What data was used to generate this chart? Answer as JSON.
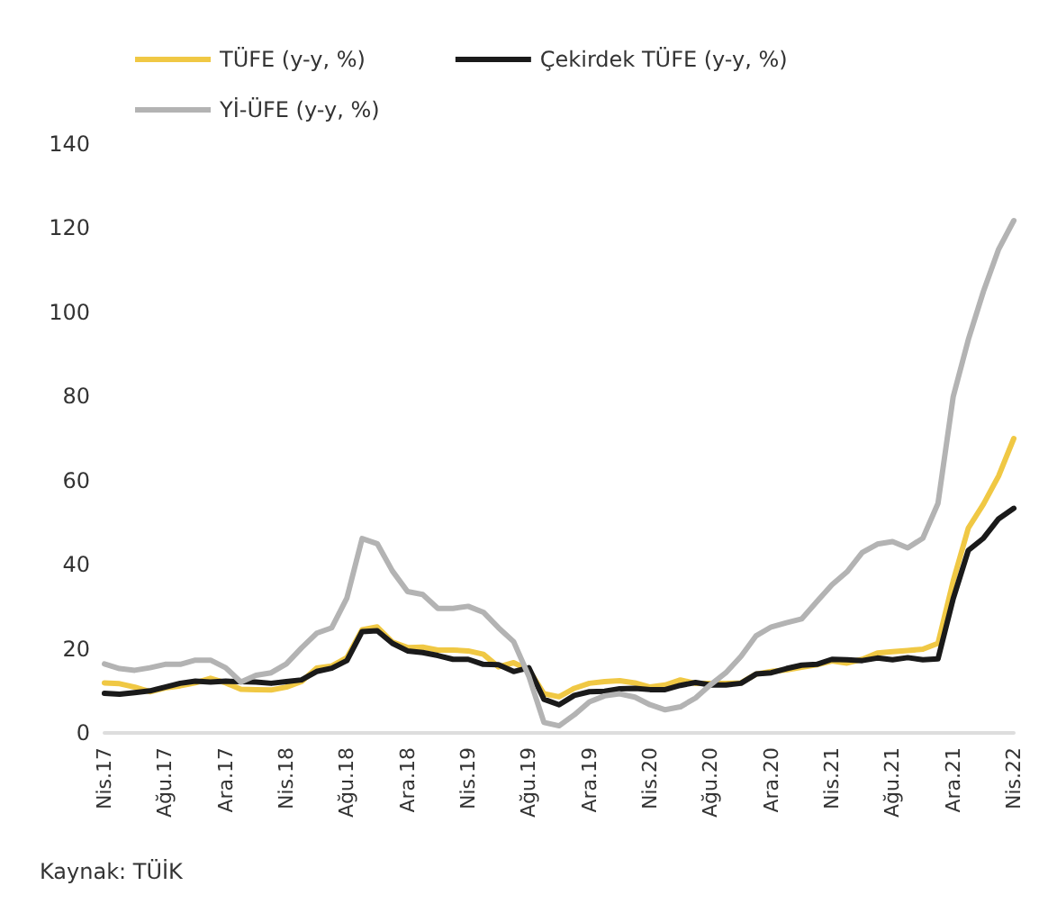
{
  "chart_data": {
    "type": "line",
    "categories": [
      "Nis.17",
      null,
      null,
      null,
      "Ağu.17",
      null,
      null,
      null,
      "Ara.17",
      null,
      null,
      null,
      "Nis.18",
      null,
      null,
      null,
      "Ağu.18",
      null,
      null,
      null,
      "Ara.18",
      null,
      null,
      null,
      "Nis.19",
      null,
      null,
      null,
      "Ağu.19",
      null,
      null,
      null,
      "Ara.19",
      null,
      null,
      null,
      "Nis.20",
      null,
      null,
      null,
      "Ağu.20",
      null,
      null,
      null,
      "Ara.20",
      null,
      null,
      null,
      "Nis.21",
      null,
      null,
      null,
      "Ağu.21",
      null,
      null,
      null,
      "Ara.21",
      null,
      null,
      null,
      "Nis.22"
    ],
    "series": [
      {
        "name": "TÜFE (y-y, %)",
        "color": "#f0c844",
        "values": [
          11.9,
          11.7,
          10.9,
          9.8,
          10.7,
          11.2,
          11.9,
          13.0,
          11.9,
          10.4,
          10.3,
          10.2,
          10.9,
          12.2,
          15.4,
          15.9,
          17.9,
          24.5,
          25.2,
          21.6,
          20.3,
          20.4,
          19.7,
          19.7,
          19.5,
          18.7,
          15.7,
          16.7,
          15.0,
          9.3,
          8.6,
          10.6,
          11.8,
          12.2,
          12.4,
          11.9,
          10.9,
          11.4,
          12.6,
          11.8,
          11.8,
          11.8,
          11.9,
          14.0,
          14.6,
          15.0,
          15.6,
          16.2,
          17.1,
          16.6,
          17.5,
          19.0,
          19.3,
          19.6,
          19.9,
          21.3,
          36.1,
          48.7,
          54.4,
          61.1,
          70.0
        ]
      },
      {
        "name": "Çekirdek TÜFE (y-y, %)",
        "color": "#1a1a1a",
        "values": [
          9.4,
          9.2,
          9.6,
          10.0,
          10.9,
          11.8,
          12.3,
          12.1,
          12.3,
          12.2,
          12.1,
          11.8,
          12.2,
          12.6,
          14.6,
          15.4,
          17.2,
          24.1,
          24.3,
          21.3,
          19.5,
          19.1,
          18.4,
          17.5,
          17.5,
          16.3,
          16.2,
          14.6,
          15.5,
          8.0,
          6.7,
          8.9,
          9.8,
          9.9,
          10.5,
          10.6,
          10.3,
          10.3,
          11.3,
          12.0,
          11.4,
          11.4,
          11.8,
          14.0,
          14.3,
          15.3,
          16.1,
          16.3,
          17.5,
          17.4,
          17.2,
          17.8,
          17.4,
          17.9,
          17.4,
          17.6,
          31.9,
          43.4,
          46.3,
          50.9,
          53.4
        ]
      },
      {
        "name": "Yİ-ÜFE (y-y, %)",
        "color": "#b3b3b3",
        "values": [
          16.4,
          15.3,
          14.9,
          15.5,
          16.3,
          16.3,
          17.3,
          17.3,
          15.5,
          12.1,
          13.7,
          14.3,
          16.4,
          20.2,
          23.7,
          25.0,
          32.1,
          46.2,
          45.0,
          38.5,
          33.6,
          32.9,
          29.6,
          29.6,
          30.1,
          28.7,
          25.0,
          21.7,
          13.5,
          2.5,
          1.7,
          4.3,
          7.4,
          8.8,
          9.3,
          8.5,
          6.7,
          5.5,
          6.2,
          8.3,
          11.5,
          14.3,
          18.2,
          23.1,
          25.2,
          26.2,
          27.1,
          31.2,
          35.2,
          38.3,
          42.9,
          44.9,
          45.5,
          44.0,
          46.3,
          54.6,
          79.9,
          93.5,
          105.0,
          115.0,
          121.8
        ]
      }
    ],
    "ylim": [
      0,
      140
    ],
    "yticks": [
      0,
      20,
      40,
      60,
      80,
      100,
      120,
      140
    ],
    "legend": "top",
    "marker": "none",
    "line_style": "solid",
    "annotations": [
      "Kaynak: TÜİK"
    ]
  }
}
